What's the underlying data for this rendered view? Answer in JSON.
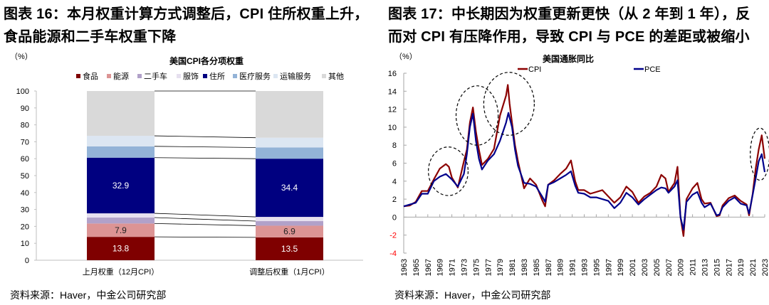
{
  "left": {
    "figure_title_line1": "图表 16：本月权重计算方式调整后，CPI 住所权重上升，",
    "figure_title_line2": "食品能源和二手车权重下降",
    "source": "资料来源：Haver，中金公司研究部"
  },
  "right": {
    "figure_title_line1": "图表 17：中长期因为权重更新更快（从 2 年到 1 年），反",
    "figure_title_line2": "而对 CPI 有压降作用，导致 CPI 与 PCE 的差距或被缩小",
    "source": "资料来源：Haver，中金公司研究部"
  },
  "chart_data": [
    {
      "type": "bar",
      "stacked": true,
      "title": "美国CPI各分项权重",
      "ylabel": "（%）",
      "xlabel": "",
      "ylim": [
        0,
        100
      ],
      "yticks": [
        0,
        10,
        20,
        30,
        40,
        50,
        60,
        70,
        80,
        90,
        100
      ],
      "grid": false,
      "legend_position": "top",
      "categories": [
        "上月权重（12月CPI）",
        "调整后权重（1月CPI）"
      ],
      "series": [
        {
          "name": "食品",
          "color": "#7f0000",
          "values": [
            13.8,
            13.5
          ],
          "labels": [
            "13.8",
            "13.5"
          ],
          "label_color": "#ffffff"
        },
        {
          "name": "能源",
          "color": "#dc9494",
          "values": [
            7.9,
            6.9
          ],
          "labels": [
            "7.9",
            "6.9"
          ],
          "label_color": "#222222"
        },
        {
          "name": "二手车",
          "color": "#b1a1c9",
          "values": [
            3.5,
            2.7
          ],
          "labels": [
            "",
            ""
          ]
        },
        {
          "name": "服饰",
          "color": "#e6e0ef",
          "values": [
            2.5,
            2.5
          ],
          "labels": [
            "",
            ""
          ]
        },
        {
          "name": "住所",
          "color": "#000080",
          "values": [
            32.9,
            34.4
          ],
          "labels": [
            "32.9",
            "34.4"
          ],
          "label_color": "#ffffff"
        },
        {
          "name": "医疗服务",
          "color": "#93b3d7",
          "values": [
            6.7,
            6.6
          ],
          "labels": [
            "",
            ""
          ]
        },
        {
          "name": "运输服务",
          "color": "#dce6f2",
          "values": [
            6.2,
            5.8
          ],
          "labels": [
            "",
            ""
          ]
        },
        {
          "name": "其他",
          "color": "#d9d9d9",
          "values": [
            26.5,
            27.6
          ],
          "labels": [
            "",
            ""
          ]
        }
      ],
      "connector_lines": true
    },
    {
      "type": "line",
      "title": "美国通胀同比",
      "ylabel": "（%）",
      "xlabel": "",
      "ylim": [
        -4,
        16
      ],
      "yticks": [
        -4,
        -2,
        0,
        2,
        4,
        6,
        8,
        10,
        12,
        14,
        16
      ],
      "negative_tick_color": "#ff0000",
      "xlim": [
        1963,
        2023
      ],
      "xticks": [
        "1963",
        "1965",
        "1967",
        "1969",
        "1971",
        "1973",
        "1975",
        "1977",
        "1979",
        "1981",
        "1983",
        "1985",
        "1987",
        "1989",
        "1991",
        "1993",
        "1995",
        "1997",
        "1999",
        "2001",
        "2003",
        "2005",
        "2007",
        "2009",
        "2011",
        "2013",
        "2015",
        "2017",
        "2019",
        "2021",
        "2023"
      ],
      "grid": false,
      "legend_position": "top",
      "series": [
        {
          "name": "CPI",
          "color": "#8b0000",
          "x": [
            1963,
            1964,
            1965,
            1966,
            1967,
            1968,
            1969,
            1970,
            1970.5,
            1971,
            1972,
            1973,
            1973.5,
            1974,
            1974.5,
            1975,
            1975.5,
            1976,
            1977,
            1978,
            1979,
            1980,
            1980.3,
            1980.6,
            1981,
            1981.5,
            1982,
            1983,
            1984,
            1985,
            1986,
            1986.5,
            1987,
            1988,
            1989,
            1990,
            1990.8,
            1991.5,
            1992,
            1993,
            1994,
            1995,
            1996,
            1997,
            1998,
            1999,
            2000,
            2001,
            2002,
            2003,
            2004,
            2005,
            2005.8,
            2006.5,
            2007,
            2008,
            2008.5,
            2009,
            2009.5,
            2010,
            2011,
            2011.8,
            2012.5,
            2013,
            2014,
            2015,
            2015.5,
            2016,
            2017,
            2018,
            2019,
            2020,
            2020.4,
            2021,
            2021.5,
            2022,
            2022.5,
            2023
          ],
          "y": [
            1.2,
            1.3,
            1.7,
            2.9,
            2.9,
            4.2,
            5.4,
            5.9,
            5.6,
            4.4,
            3.3,
            6.2,
            7.5,
            10.5,
            12.2,
            9.5,
            7.5,
            5.8,
            6.5,
            7.6,
            11.3,
            13.5,
            14.7,
            12.6,
            10.5,
            8.0,
            6.2,
            3.2,
            4.3,
            3.6,
            1.9,
            1.2,
            3.6,
            4.1,
            4.8,
            5.4,
            6.3,
            4.0,
            3.0,
            3.0,
            2.6,
            2.8,
            3.0,
            2.3,
            1.6,
            2.2,
            3.4,
            2.8,
            1.6,
            2.3,
            2.7,
            3.4,
            4.7,
            4.3,
            2.8,
            3.8,
            5.6,
            0.0,
            -2.1,
            2.0,
            3.2,
            3.8,
            2.0,
            1.5,
            1.6,
            0.1,
            0.2,
            1.3,
            2.1,
            2.4,
            1.8,
            1.4,
            0.2,
            2.6,
            5.4,
            7.5,
            9.1,
            6.5
          ]
        },
        {
          "name": "PCE",
          "color": "#00008b",
          "x": [
            1963,
            1964,
            1965,
            1966,
            1967,
            1968,
            1969,
            1970,
            1971,
            1972,
            1973,
            1973.5,
            1974,
            1974.5,
            1975,
            1975.5,
            1976,
            1977,
            1978,
            1979,
            1980,
            1980.4,
            1981,
            1981.5,
            1982,
            1983,
            1984,
            1985,
            1986,
            1986.5,
            1987,
            1988,
            1989,
            1990,
            1990.8,
            1991.5,
            1992,
            1993,
            1994,
            1995,
            1996,
            1997,
            1998,
            1999,
            2000,
            2001,
            2002,
            2003,
            2004,
            2005,
            2005.8,
            2006.5,
            2007,
            2008,
            2008.5,
            2009,
            2009.5,
            2010,
            2011,
            2011.8,
            2012.5,
            2013,
            2014,
            2015,
            2015.5,
            2016,
            2017,
            2018,
            2019,
            2020,
            2020.4,
            2021,
            2021.5,
            2022,
            2022.5,
            2023
          ],
          "y": [
            1.2,
            1.4,
            1.6,
            2.6,
            2.6,
            4.0,
            4.5,
            4.8,
            4.2,
            3.4,
            4.8,
            7.0,
            10.0,
            11.5,
            8.5,
            6.5,
            5.3,
            6.3,
            7.0,
            8.5,
            10.5,
            11.6,
            10.0,
            7.5,
            5.7,
            3.8,
            3.7,
            3.4,
            2.3,
            1.7,
            3.6,
            3.9,
            4.3,
            4.7,
            5.1,
            3.5,
            2.7,
            2.6,
            2.2,
            2.2,
            2.0,
            1.8,
            1.0,
            1.6,
            2.7,
            2.2,
            1.4,
            2.0,
            2.5,
            3.0,
            3.3,
            3.2,
            2.7,
            3.4,
            4.1,
            0.0,
            -1.4,
            1.7,
            2.5,
            2.8,
            1.6,
            1.1,
            1.5,
            0.2,
            0.3,
            1.1,
            1.8,
            2.2,
            1.5,
            1.3,
            0.4,
            2.5,
            4.3,
            6.2,
            7.0,
            5.0
          ]
        }
      ],
      "annotations": [
        {
          "type": "dashed-ellipse",
          "label": "1969-1971 gap"
        },
        {
          "type": "dashed-ellipse",
          "label": "1974-1975 peak"
        },
        {
          "type": "dashed-ellipse",
          "label": "1979-1981 peak"
        },
        {
          "type": "dashed-ellipse",
          "label": "2021-2023 peak"
        }
      ]
    }
  ]
}
